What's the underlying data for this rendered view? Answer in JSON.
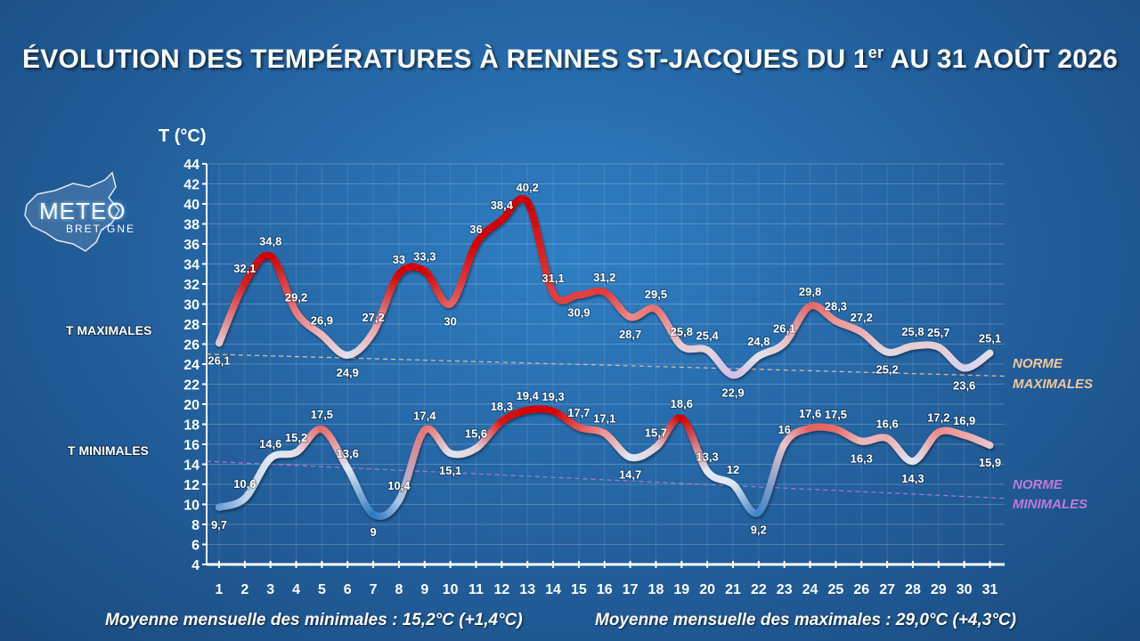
{
  "title": "ÉVOLUTION DES TEMPÉRATURES À RENNES ST-JACQUES DU 1",
  "title_sup": "er",
  "title_end": " AU 31 AOÛT 2026",
  "logo": {
    "line1": "METEO",
    "line2": "BRET·GNE"
  },
  "footer": {
    "min_avg": "Moyenne mensuelle des minimales : 15,2°C (+1,4°C)",
    "max_avg": "Moyenne mensuelle des maximales : 29,0°C (+4,3°C)"
  },
  "colors": {
    "hot": "#d40000",
    "warm_mid": "#f0a0a0",
    "neutral": "#dfe8f4",
    "cold": "#1d6fbf",
    "cool_purple": "#c9a8e0",
    "norm_max": "#f3c89a",
    "norm_min": "#c07ad8"
  },
  "chart_data": {
    "type": "line",
    "ylabel": "T (°C)",
    "ylim": [
      4,
      44
    ],
    "yticks": [
      4,
      6,
      8,
      10,
      12,
      14,
      16,
      18,
      20,
      22,
      24,
      26,
      28,
      30,
      32,
      34,
      36,
      38,
      40,
      42,
      44
    ],
    "x": [
      1,
      2,
      3,
      4,
      5,
      6,
      7,
      8,
      9,
      10,
      11,
      12,
      13,
      14,
      15,
      16,
      17,
      18,
      19,
      20,
      21,
      22,
      23,
      24,
      25,
      26,
      27,
      28,
      29,
      30,
      31
    ],
    "grid": true,
    "series": [
      {
        "name": "T MAXIMALES",
        "values": [
          26.1,
          32.1,
          34.8,
          29.2,
          26.9,
          24.9,
          27.2,
          33,
          33.3,
          30,
          36,
          38.4,
          40.2,
          31.1,
          30.9,
          31.2,
          28.7,
          29.5,
          25.8,
          25.4,
          22.9,
          24.8,
          26.1,
          29.8,
          28.3,
          27.2,
          25.2,
          25.8,
          25.7,
          23.6,
          25.1
        ],
        "labels": [
          "26,1",
          "32,1",
          "34,8",
          "29,2",
          "26,9",
          "24,9",
          "27,2",
          "33",
          "33,3",
          "30",
          "36",
          "38,4",
          "40,2",
          "31,1",
          "30,9",
          "31,2",
          "28,7",
          "29,5",
          "25,8",
          "25,4",
          "22,9",
          "24,8",
          "26,1",
          "29,8",
          "28,3",
          "27,2",
          "25,2",
          "25,8",
          "25,7",
          "23,6",
          "25,1"
        ]
      },
      {
        "name": "T MINIMALES",
        "values": [
          9.7,
          10.6,
          14.6,
          15.2,
          17.5,
          13.6,
          9,
          10.4,
          17.4,
          15.1,
          15.6,
          18.3,
          19.4,
          19.3,
          17.7,
          17.1,
          14.7,
          15.7,
          18.6,
          13.3,
          12,
          9.2,
          16,
          17.6,
          17.5,
          16.3,
          16.6,
          14.3,
          17.2,
          16.9,
          15.9
        ],
        "labels": [
          "9,7",
          "10,6",
          "14,6",
          "15,2",
          "17,5",
          "13,6",
          "9",
          "10,4",
          "17,4",
          "15,1",
          "15,6",
          "18,3",
          "19,4",
          "19,3",
          "17,7",
          "17,1",
          "14,7",
          "15,7",
          "18,6",
          "13,3",
          "12",
          "9,2",
          "16",
          "17,6",
          "17,5",
          "16,3",
          "16,6",
          "14,3",
          "17,2",
          "16,9",
          "15,9"
        ]
      }
    ],
    "norms": [
      {
        "name": "NORME MAXIMALES",
        "line1": "NORME",
        "line2": "MAXIMALES",
        "start": 25.0,
        "end": 22.8
      },
      {
        "name": "NORME MINIMALES",
        "line1": "NORME",
        "line2": "MINIMALES",
        "start": 14.3,
        "end": 10.6
      }
    ]
  }
}
